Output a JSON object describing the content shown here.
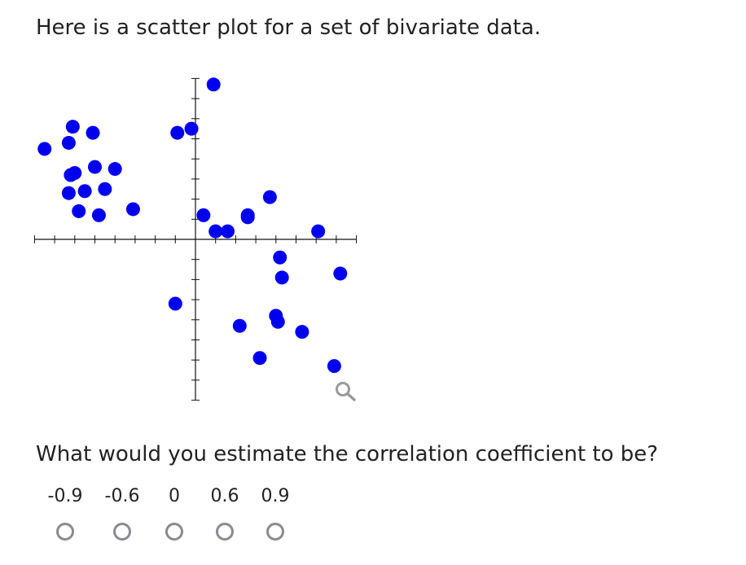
{
  "prompt": "Here is a scatter plot for a set of bivariate data.",
  "question": "What would you estimate the correlation coefficient to be?",
  "choices": [
    {
      "label": "-0.9"
    },
    {
      "label": "-0.6"
    },
    {
      "label": "0"
    },
    {
      "label": "0.6"
    },
    {
      "label": "0.9"
    }
  ],
  "colors": {
    "point": "#0000ee",
    "axis": "#111111",
    "radio_border": "#8a8a94",
    "zoom_icon": "#9a9a9a"
  },
  "icons": {
    "zoom": "magnifier-icon"
  },
  "chart_data": {
    "type": "scatter",
    "title": "",
    "xlabel": "",
    "ylabel": "",
    "xlim": [
      -8,
      8
    ],
    "ylim": [
      -8,
      8
    ],
    "grid": false,
    "tick_step": 1,
    "points": [
      [
        -7.5,
        4.5
      ],
      [
        -6.1,
        5.6
      ],
      [
        -6.3,
        4.8
      ],
      [
        -5.1,
        5.3
      ],
      [
        -6.2,
        3.2
      ],
      [
        -6.0,
        3.3
      ],
      [
        -5.0,
        3.6
      ],
      [
        -4.0,
        3.5
      ],
      [
        -6.3,
        2.3
      ],
      [
        -5.5,
        2.4
      ],
      [
        -4.5,
        2.5
      ],
      [
        -5.8,
        1.4
      ],
      [
        -4.8,
        1.2
      ],
      [
        -3.1,
        1.5
      ],
      [
        -0.9,
        5.3
      ],
      [
        -0.2,
        5.5
      ],
      [
        0.9,
        7.7
      ],
      [
        0.4,
        1.2
      ],
      [
        1.0,
        0.4
      ],
      [
        1.6,
        0.4
      ],
      [
        2.6,
        1.1
      ],
      [
        2.6,
        1.2
      ],
      [
        3.7,
        2.1
      ],
      [
        4.2,
        -0.9
      ],
      [
        4.3,
        -1.9
      ],
      [
        6.1,
        0.4
      ],
      [
        7.2,
        -1.7
      ],
      [
        -1.0,
        -3.2
      ],
      [
        2.2,
        -4.3
      ],
      [
        4.0,
        -3.8
      ],
      [
        4.1,
        -4.1
      ],
      [
        5.3,
        -4.6
      ],
      [
        3.2,
        -5.9
      ],
      [
        6.9,
        -6.3
      ]
    ]
  }
}
